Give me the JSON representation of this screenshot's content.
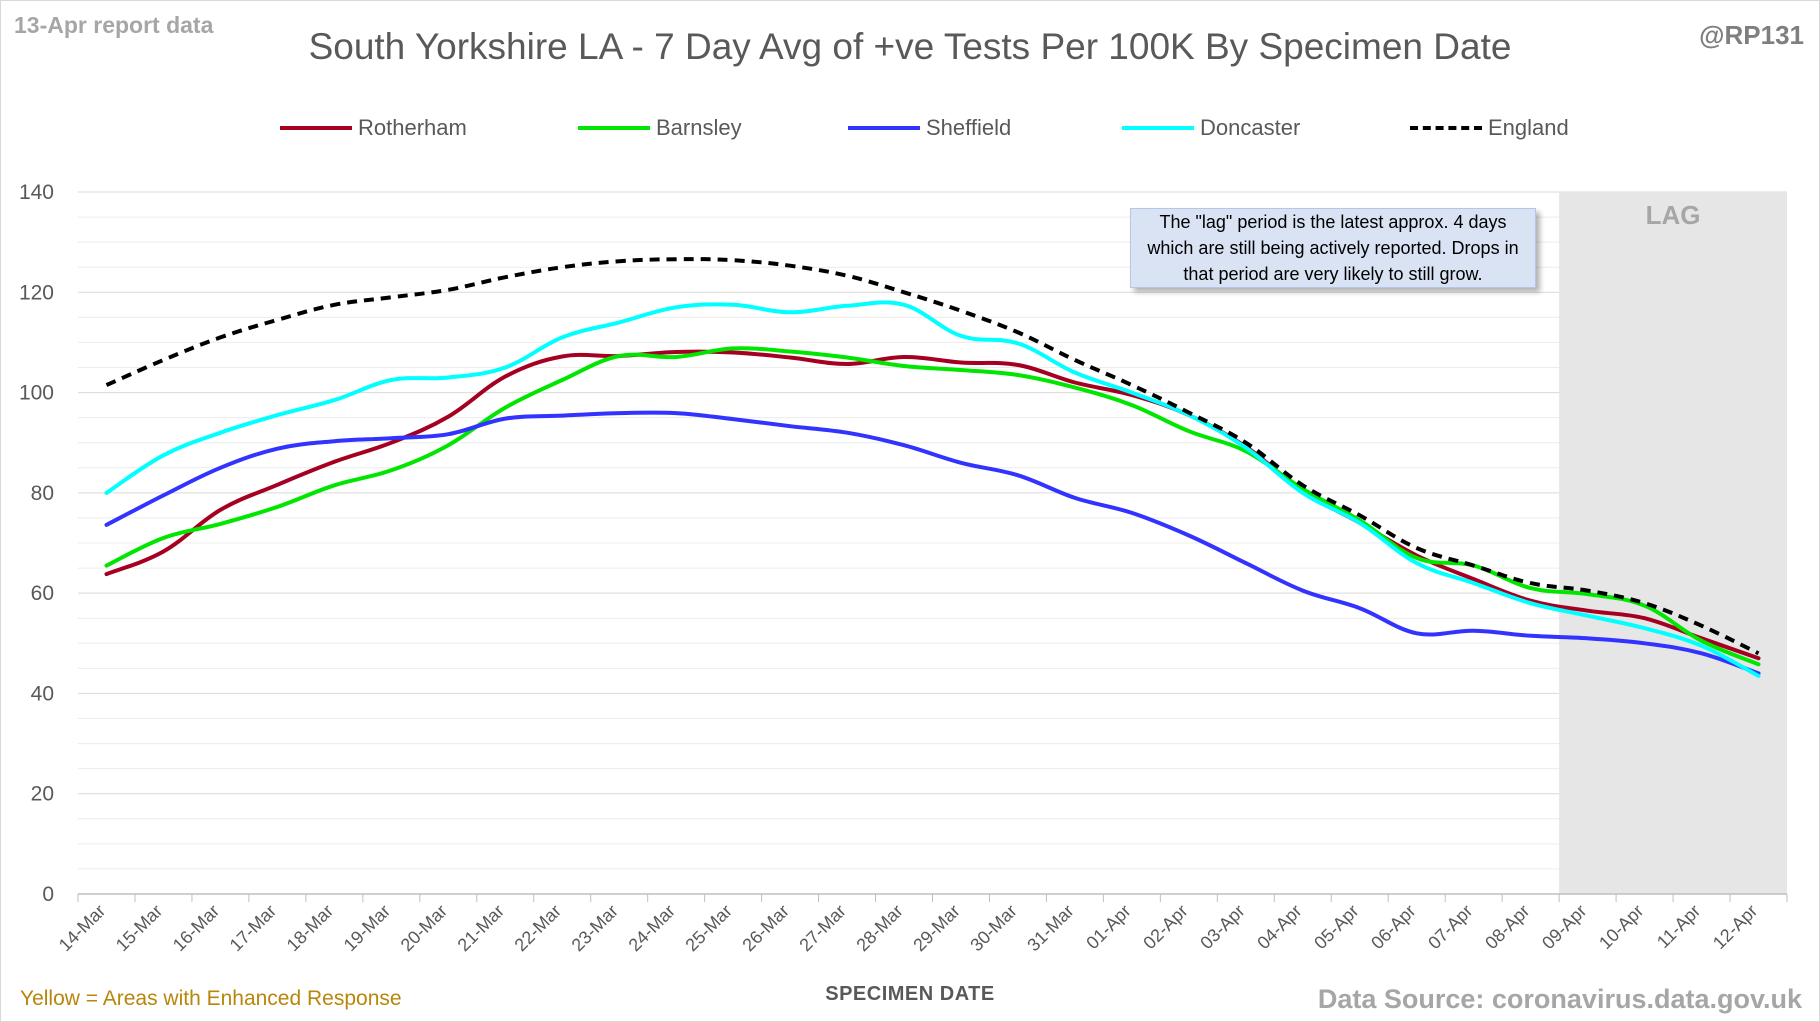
{
  "header": {
    "report_note": "13-Apr report data",
    "handle": "@RP131"
  },
  "footer": {
    "enhanced_note": "Yellow = Areas with Enhanced Response",
    "data_source": "Data Source: coronavirus.data.gov.uk"
  },
  "annotation": {
    "lag_note": "The \"lag\" period is the latest approx. 4 days which are still being actively reported. Drops in that period are very likely to still grow.",
    "lag_label": "LAG"
  },
  "chart_data": {
    "type": "line",
    "title": "South Yorkshire LA - 7 Day Avg of +ve Tests Per 100K By Specimen Date",
    "xlabel": "SPECIMEN DATE",
    "ylabel": "",
    "ylim": [
      0,
      140
    ],
    "yticks": [
      0,
      20,
      40,
      60,
      80,
      100,
      120,
      140
    ],
    "grid": true,
    "legend_position": "top",
    "lag_start": "09-Apr",
    "lag_end": "12-Apr",
    "categories": [
      "14-Mar",
      "15-Mar",
      "16-Mar",
      "17-Mar",
      "18-Mar",
      "19-Mar",
      "20-Mar",
      "21-Mar",
      "22-Mar",
      "23-Mar",
      "24-Mar",
      "25-Mar",
      "26-Mar",
      "27-Mar",
      "28-Mar",
      "29-Mar",
      "30-Mar",
      "31-Mar",
      "01-Apr",
      "02-Apr",
      "03-Apr",
      "04-Apr",
      "05-Apr",
      "06-Apr",
      "07-Apr",
      "08-Apr",
      "09-Apr",
      "10-Apr",
      "11-Apr",
      "12-Apr"
    ],
    "series": [
      {
        "name": "Rotherham",
        "color": "#a50021",
        "dashed": false,
        "values": [
          63.8,
          68.3,
          76.6,
          81.6,
          86.2,
          90.0,
          95.2,
          103.2,
          107.2,
          107.3,
          108.1,
          108.0,
          107.0,
          105.7,
          107.1,
          106.0,
          105.5,
          102.0,
          99.5,
          95.5,
          89.2,
          80.3,
          74.0,
          67.5,
          62.8,
          58.5,
          56.5,
          55.0,
          51.0,
          47.0
        ]
      },
      {
        "name": "Barnsley",
        "color": "#00e600",
        "dashed": false,
        "values": [
          65.5,
          71.0,
          73.8,
          77.2,
          81.5,
          84.5,
          89.5,
          97.0,
          102.5,
          107.3,
          107.1,
          108.8,
          108.2,
          107.0,
          105.3,
          104.5,
          103.5,
          101.0,
          97.5,
          92.3,
          88.3,
          80.8,
          74.5,
          67.0,
          65.5,
          61.0,
          59.8,
          57.5,
          50.5,
          45.8
        ]
      },
      {
        "name": "Sheffield",
        "color": "#3333ff",
        "dashed": false,
        "values": [
          73.6,
          79.5,
          85.0,
          88.8,
          90.3,
          90.9,
          91.7,
          94.8,
          95.4,
          95.9,
          95.9,
          94.7,
          93.3,
          92.0,
          89.5,
          86.0,
          83.5,
          79.0,
          76.0,
          71.5,
          66.0,
          60.5,
          57.0,
          52.0,
          52.5,
          51.5,
          51.0,
          50.0,
          48.0,
          44.0
        ]
      },
      {
        "name": "Doncaster",
        "color": "#00ffff",
        "dashed": false,
        "values": [
          80.0,
          87.5,
          92.0,
          95.5,
          98.5,
          102.5,
          103.0,
          105.0,
          111.0,
          114.0,
          117.0,
          117.5,
          116.0,
          117.3,
          117.5,
          111.3,
          109.8,
          104.0,
          100.0,
          95.5,
          89.0,
          80.0,
          74.0,
          66.0,
          62.0,
          58.0,
          55.5,
          53.0,
          49.5,
          43.5
        ]
      },
      {
        "name": "England",
        "color": "#000000",
        "dashed": true,
        "values": [
          101.5,
          106.5,
          111.0,
          114.5,
          117.5,
          119.0,
          120.5,
          123.0,
          125.0,
          126.2,
          126.6,
          126.4,
          125.3,
          123.3,
          120.0,
          116.3,
          112.0,
          106.5,
          101.5,
          96.0,
          90.0,
          81.5,
          75.5,
          69.0,
          65.5,
          62.0,
          60.5,
          58.0,
          53.5,
          48.0
        ]
      }
    ]
  }
}
